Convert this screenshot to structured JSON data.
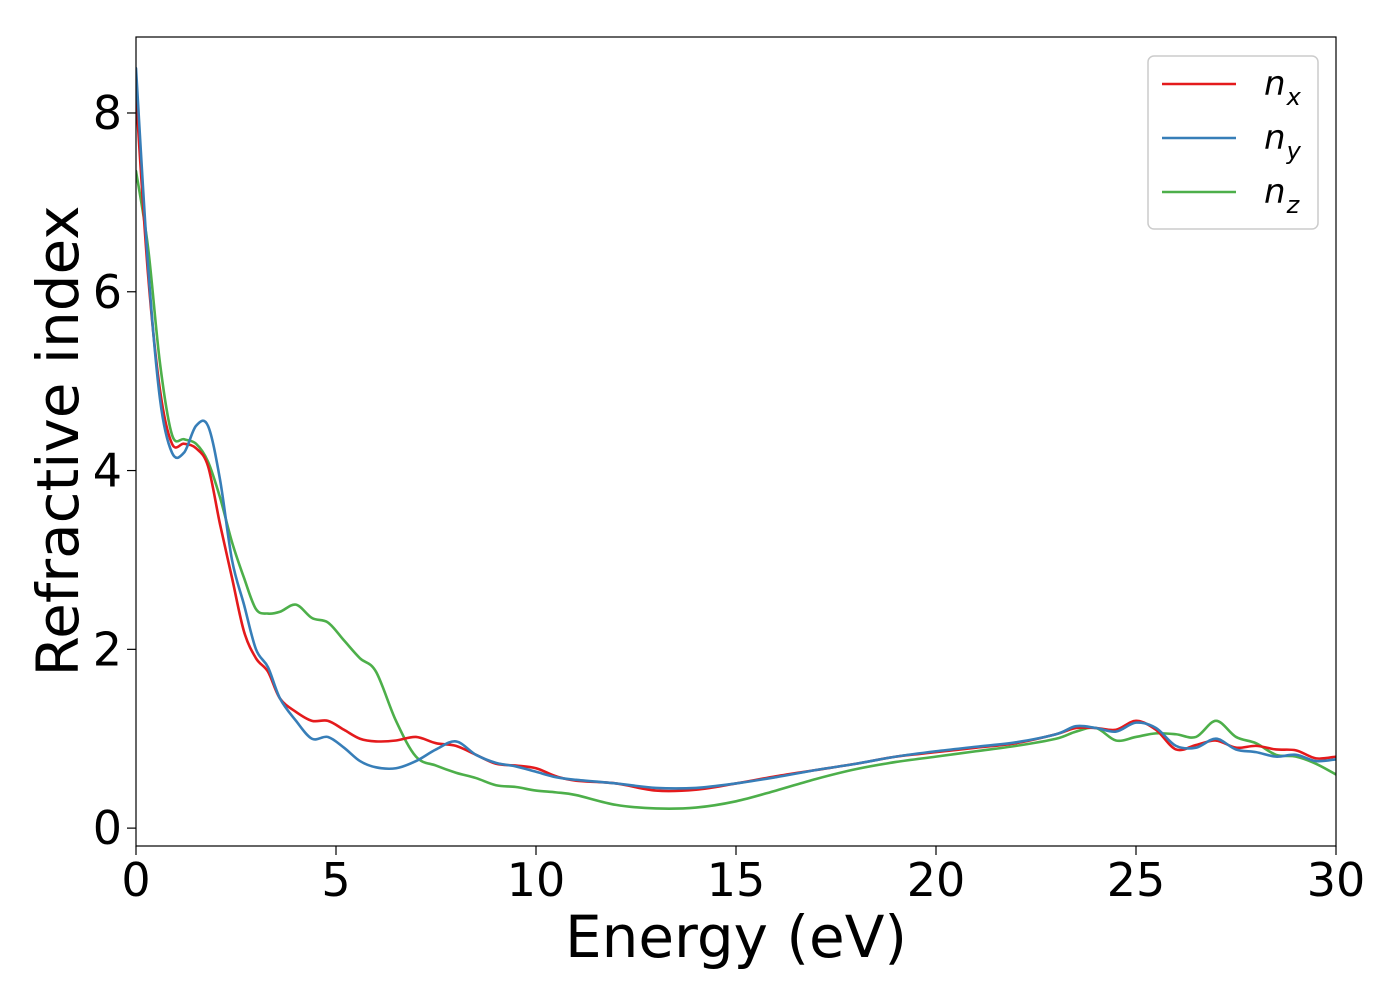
{
  "chart_data": {
    "type": "line",
    "title": "",
    "xlabel": "Energy (eV)",
    "ylabel": "Refractive index",
    "xlim": [
      0,
      30
    ],
    "ylim": [
      -0.2,
      8.85
    ],
    "xticks": [
      0,
      5,
      10,
      15,
      20,
      25,
      30
    ],
    "yticks": [
      0,
      2,
      4,
      6,
      8
    ],
    "grid": false,
    "legend_position": "top-right",
    "series": [
      {
        "name": "n_x",
        "label_base": "n",
        "label_sub": "x",
        "color": "#e41a1c",
        "x": [
          0,
          0.3,
          0.6,
          0.9,
          1.2,
          1.5,
          1.8,
          2.1,
          2.4,
          2.7,
          3.0,
          3.3,
          3.6,
          4.0,
          4.4,
          4.8,
          5.2,
          5.6,
          6.0,
          6.5,
          7.0,
          7.5,
          8.0,
          8.5,
          9.0,
          9.5,
          10.0,
          10.5,
          11.0,
          12.0,
          13.0,
          14.0,
          15.0,
          16.0,
          17.0,
          18.0,
          19.0,
          20.0,
          21.0,
          22.0,
          23.0,
          23.5,
          24.0,
          24.5,
          25.0,
          25.5,
          26.0,
          26.5,
          27.0,
          27.5,
          28.0,
          28.5,
          29.0,
          29.5,
          30.0
        ],
        "y": [
          8.2,
          6.2,
          4.9,
          4.3,
          4.3,
          4.25,
          4.05,
          3.4,
          2.8,
          2.2,
          1.9,
          1.75,
          1.45,
          1.3,
          1.2,
          1.2,
          1.1,
          1.0,
          0.97,
          0.98,
          1.02,
          0.95,
          0.92,
          0.82,
          0.72,
          0.7,
          0.67,
          0.58,
          0.53,
          0.5,
          0.42,
          0.43,
          0.5,
          0.58,
          0.65,
          0.72,
          0.8,
          0.85,
          0.9,
          0.95,
          1.05,
          1.12,
          1.12,
          1.1,
          1.2,
          1.1,
          0.88,
          0.93,
          0.98,
          0.9,
          0.92,
          0.88,
          0.87,
          0.78,
          0.8
        ]
      },
      {
        "name": "n_y",
        "label_base": "n",
        "label_sub": "y",
        "color": "#377eb8",
        "x": [
          0,
          0.3,
          0.6,
          0.9,
          1.2,
          1.5,
          1.8,
          2.1,
          2.4,
          2.7,
          3.0,
          3.3,
          3.6,
          4.0,
          4.4,
          4.8,
          5.2,
          5.6,
          6.0,
          6.5,
          7.0,
          7.5,
          8.0,
          8.5,
          9.0,
          9.5,
          10.0,
          10.5,
          11.0,
          12.0,
          13.0,
          14.0,
          15.0,
          16.0,
          17.0,
          18.0,
          19.0,
          20.0,
          21.0,
          22.0,
          23.0,
          23.5,
          24.0,
          24.5,
          25.0,
          25.5,
          26.0,
          26.5,
          27.0,
          27.5,
          28.0,
          28.5,
          29.0,
          29.5,
          30.0
        ],
        "y": [
          8.5,
          6.3,
          4.8,
          4.2,
          4.2,
          4.5,
          4.5,
          3.9,
          3.0,
          2.5,
          2.0,
          1.8,
          1.45,
          1.2,
          1.0,
          1.02,
          0.9,
          0.75,
          0.68,
          0.67,
          0.75,
          0.88,
          0.97,
          0.82,
          0.73,
          0.69,
          0.63,
          0.57,
          0.54,
          0.5,
          0.45,
          0.45,
          0.5,
          0.57,
          0.65,
          0.72,
          0.8,
          0.86,
          0.91,
          0.96,
          1.05,
          1.14,
          1.12,
          1.08,
          1.18,
          1.12,
          0.92,
          0.9,
          1.0,
          0.88,
          0.85,
          0.8,
          0.82,
          0.75,
          0.77
        ]
      },
      {
        "name": "n_z",
        "label_base": "n",
        "label_sub": "z",
        "color": "#4daf4a",
        "x": [
          0,
          0.3,
          0.6,
          0.9,
          1.2,
          1.5,
          1.8,
          2.1,
          2.4,
          2.7,
          3.0,
          3.3,
          3.6,
          4.0,
          4.4,
          4.8,
          5.2,
          5.6,
          6.0,
          6.5,
          7.0,
          7.5,
          8.0,
          8.5,
          9.0,
          9.5,
          10.0,
          10.5,
          11.0,
          12.0,
          13.0,
          14.0,
          15.0,
          16.0,
          17.0,
          18.0,
          19.0,
          20.0,
          21.0,
          22.0,
          23.0,
          23.5,
          24.0,
          24.5,
          25.0,
          25.5,
          26.0,
          26.5,
          27.0,
          27.5,
          28.0,
          28.5,
          29.0,
          29.5,
          30.0
        ],
        "y": [
          7.35,
          6.5,
          5.2,
          4.4,
          4.35,
          4.3,
          4.1,
          3.7,
          3.2,
          2.8,
          2.45,
          2.4,
          2.42,
          2.5,
          2.35,
          2.3,
          2.1,
          1.9,
          1.75,
          1.2,
          0.8,
          0.7,
          0.62,
          0.56,
          0.48,
          0.46,
          0.42,
          0.4,
          0.37,
          0.26,
          0.22,
          0.23,
          0.3,
          0.42,
          0.55,
          0.66,
          0.74,
          0.8,
          0.86,
          0.92,
          1.0,
          1.08,
          1.12,
          0.98,
          1.02,
          1.06,
          1.05,
          1.02,
          1.2,
          1.02,
          0.95,
          0.82,
          0.8,
          0.72,
          0.6
        ]
      }
    ]
  }
}
